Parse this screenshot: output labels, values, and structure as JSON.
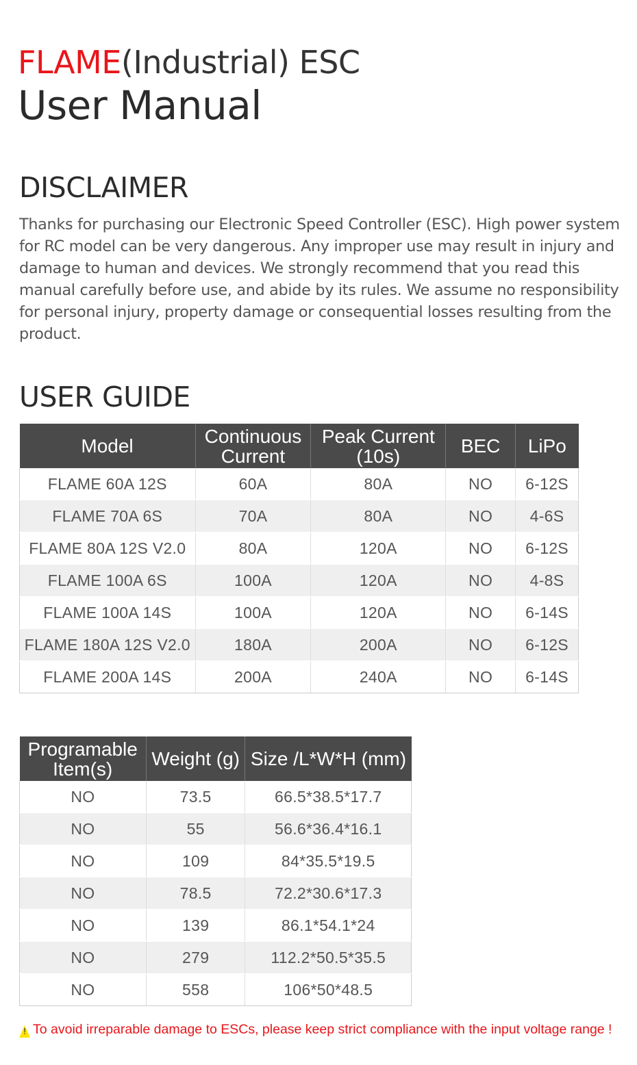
{
  "title": {
    "brand": "FLAME",
    "rest": "(Industrial) ESC",
    "subtitle": "User Manual"
  },
  "disclaimer": {
    "heading": "DISCLAIMER",
    "text": "Thanks for purchasing our Electronic Speed Controller (ESC). High power system for RC model can be very dangerous. Any improper use may result in injury and damage to human and devices. We strongly recommend that you read this manual carefully before use, and abide by its rules. We assume no responsibility for personal injury, property damage or consequential losses resulting from the product."
  },
  "guide": {
    "heading": "USER GUIDE",
    "table1": {
      "headers": [
        "Model",
        "Continuous Current",
        "Peak Current (10s)",
        "BEC",
        "LiPo"
      ],
      "rows": [
        [
          "FLAME 60A 12S",
          "60A",
          "80A",
          "NO",
          "6-12S"
        ],
        [
          "FLAME 70A 6S",
          "70A",
          "80A",
          "NO",
          "4-6S"
        ],
        [
          "FLAME 80A 12S V2.0",
          "80A",
          "120A",
          "NO",
          "6-12S"
        ],
        [
          "FLAME 100A 6S",
          "100A",
          "120A",
          "NO",
          "4-8S"
        ],
        [
          "FLAME 100A 14S",
          "100A",
          "120A",
          "NO",
          "6-14S"
        ],
        [
          "FLAME 180A 12S V2.0",
          "180A",
          "200A",
          "NO",
          "6-12S"
        ],
        [
          "FLAME 200A 14S",
          "200A",
          "240A",
          "NO",
          "6-14S"
        ]
      ]
    },
    "table2": {
      "headers": [
        "Programable Item(s)",
        "Weight (g)",
        "Size /L*W*H (mm)"
      ],
      "rows": [
        [
          "NO",
          "73.5",
          "66.5*38.5*17.7"
        ],
        [
          "NO",
          "55",
          "56.6*36.4*16.1"
        ],
        [
          "NO",
          "109",
          "84*35.5*19.5"
        ],
        [
          "NO",
          "78.5",
          "72.2*30.6*17.3"
        ],
        [
          "NO",
          "139",
          "86.1*54.1*24"
        ],
        [
          "NO",
          "279",
          "112.2*50.5*35.5"
        ],
        [
          "NO",
          "558",
          "106*50*48.5"
        ]
      ]
    }
  },
  "warning": {
    "icon": "warning-triangle-icon",
    "text": "To avoid irreparable damage to ESCs, please keep strict compliance with the input voltage range !"
  },
  "colors": {
    "brand": "#e8161b",
    "header_bg": "#4a4a4a",
    "stripe": "#efefef"
  }
}
